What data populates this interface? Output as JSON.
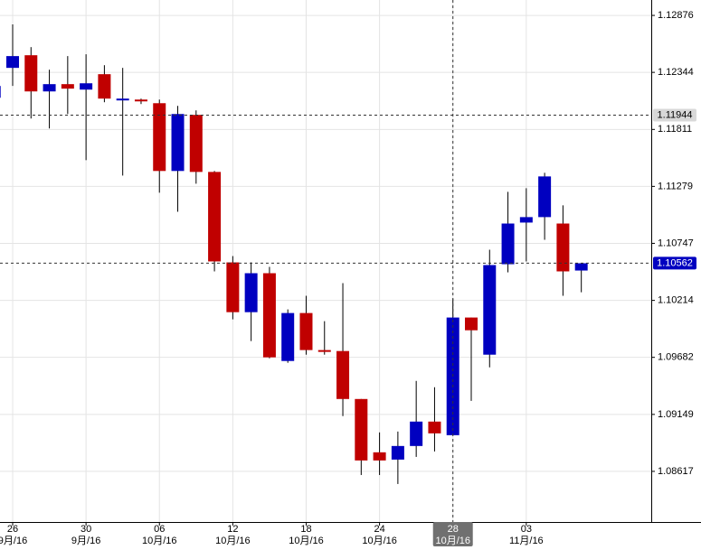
{
  "chart_data": {
    "type": "candlestick",
    "categories": [
      null,
      "26",
      null,
      null,
      null,
      "30",
      null,
      null,
      null,
      "06",
      null,
      null,
      null,
      "12",
      null,
      null,
      null,
      "18",
      null,
      null,
      null,
      "24",
      null,
      null,
      null,
      "28",
      null,
      null,
      null,
      "03",
      null,
      null,
      null
    ],
    "category_months": [
      null,
      "9月/16",
      null,
      null,
      null,
      "9月/16",
      null,
      null,
      null,
      "10月/16",
      null,
      null,
      null,
      "10月/16",
      null,
      null,
      null,
      "10月/16",
      null,
      null,
      null,
      "10月/16",
      null,
      null,
      null,
      "10月/16",
      null,
      null,
      null,
      "11月/16",
      null,
      null,
      null
    ],
    "open": [
      1.12107,
      1.12386,
      1.12504,
      1.12166,
      1.12234,
      1.12183,
      1.12327,
      1.12082,
      1.1209,
      1.12056,
      1.11423,
      1.11947,
      1.11414,
      1.10569,
      1.10104,
      1.10468,
      1.09648,
      1.10096,
      1.0975,
      1.09741,
      1.09293,
      1.08795,
      1.08727,
      1.08854,
      1.09082,
      1.08955,
      1.10054,
      1.09707,
      1.10552,
      1.10941,
      1.10992,
      1.10932,
      1.10493
    ],
    "high": [
      1.12259,
      1.12792,
      1.1258,
      1.12369,
      1.12496,
      1.12513,
      1.12411,
      1.12386,
      1.12099,
      1.1209,
      1.12031,
      1.11989,
      1.11423,
      1.10628,
      1.10569,
      1.10527,
      1.1013,
      1.10257,
      1.1002,
      1.10375,
      1.09293,
      1.08981,
      1.08989,
      1.09462,
      1.09403,
      1.10231,
      1.10054,
      1.10687,
      1.11228,
      1.11262,
      1.11406,
      1.11102,
      1.10561
    ],
    "low": [
      1.12073,
      1.12217,
      1.11913,
      1.1182,
      1.11955,
      1.11524,
      1.12065,
      1.1138,
      1.12048,
      1.1122,
      1.11042,
      1.11304,
      1.10485,
      1.10037,
      1.09834,
      1.09673,
      1.09631,
      1.09707,
      1.09707,
      1.09133,
      1.08583,
      1.08583,
      1.08499,
      1.08752,
      1.08803,
      1.08955,
      1.09276,
      1.09589,
      1.10476,
      1.10578,
      1.1078,
      1.10257,
      1.1029
    ],
    "close": [
      1.12217,
      1.12496,
      1.12166,
      1.12234,
      1.12192,
      1.12242,
      1.12099,
      1.12099,
      1.12073,
      1.11423,
      1.11955,
      1.11414,
      1.10578,
      1.10104,
      1.10468,
      1.09682,
      1.10096,
      1.0975,
      1.09733,
      1.09293,
      1.08719,
      1.08719,
      1.08854,
      1.09082,
      1.08972,
      1.10054,
      1.09935,
      1.10544,
      1.10932,
      1.10992,
      1.11372,
      1.10485,
      1.10561
    ],
    "up_color": "#0000c0",
    "down_color": "#c00000",
    "ylim": [
      1.08144,
      1.1302
    ],
    "yticks": [
      1.08617,
      1.09149,
      1.09682,
      1.10214,
      1.10747,
      1.11279,
      1.11811,
      1.12344,
      1.12876
    ],
    "grid": true,
    "price_lines": [
      {
        "value": 1.11944,
        "color": "#333333",
        "badge_color": "#d8d8d8",
        "text_color": "#000000"
      },
      {
        "value": 1.10562,
        "color": "#333333",
        "badge_color": "#0000c0",
        "text_color": "#ffffff"
      }
    ],
    "crosshair_category": 25
  }
}
